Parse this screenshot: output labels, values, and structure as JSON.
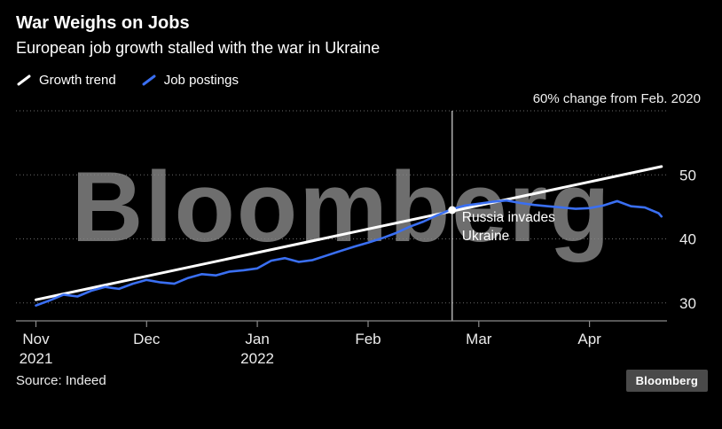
{
  "watermark": "Bloomberg",
  "footer": {
    "source": "Source: Indeed",
    "logo": "Bloomberg"
  },
  "chart_data": {
    "type": "line",
    "title": "War Weighs on Jobs",
    "subtitle": "European job growth stalled with the war in Ukraine",
    "ylabel": "60% change from Feb. 2020",
    "x_unit": "months since Nov 1, 2021",
    "xlim": [
      -0.18,
      5.7
    ],
    "ylim": [
      27.2,
      60
    ],
    "yticks": [
      30,
      40,
      50
    ],
    "ytop": 60,
    "grid": "dotted horizontal gridlines",
    "legend_position": "top-left",
    "background": "#000000",
    "xticks": [
      {
        "x": 0,
        "label": "Nov",
        "year": "2021"
      },
      {
        "x": 1,
        "label": "Dec"
      },
      {
        "x": 2,
        "label": "Jan",
        "year": "2022"
      },
      {
        "x": 3,
        "label": "Feb"
      },
      {
        "x": 4,
        "label": "Mar"
      },
      {
        "x": 5,
        "label": "Apr"
      }
    ],
    "event": {
      "x": 3.76,
      "y": 44.5,
      "label": "Russia invades Ukraine",
      "label_lines": [
        "Russia invades",
        "Ukraine"
      ]
    },
    "series": [
      {
        "name": "Growth trend",
        "color": "#ffffff",
        "width": 3,
        "x": [
          0,
          5.65
        ],
        "y": [
          30.5,
          51.3
        ]
      },
      {
        "name": "Job postings",
        "color": "#3a6ff2",
        "width": 2.6,
        "x": [
          0,
          0.125,
          0.25,
          0.375,
          0.5,
          0.625,
          0.75,
          0.875,
          1,
          1.125,
          1.25,
          1.375,
          1.5,
          1.625,
          1.75,
          1.875,
          2,
          2.125,
          2.25,
          2.375,
          2.5,
          2.625,
          2.75,
          2.875,
          3,
          3.125,
          3.25,
          3.375,
          3.5,
          3.625,
          3.75,
          3.875,
          4,
          4.125,
          4.25,
          4.375,
          4.5,
          4.625,
          4.75,
          4.875,
          5,
          5.125,
          5.25,
          5.375,
          5.5,
          5.625,
          5.65
        ],
        "y": [
          29.6,
          30.4,
          31.3,
          31.0,
          31.9,
          32.5,
          32.2,
          33.0,
          33.6,
          33.2,
          33.0,
          33.9,
          34.5,
          34.3,
          34.9,
          35.1,
          35.4,
          36.6,
          37.0,
          36.4,
          36.7,
          37.4,
          38.1,
          38.8,
          39.4,
          40.1,
          40.9,
          41.9,
          42.7,
          43.7,
          44.6,
          45.2,
          45.5,
          45.8,
          46.0,
          45.6,
          45.3,
          45.1,
          44.9,
          44.7,
          44.8,
          45.2,
          45.9,
          45.1,
          44.9,
          44.0,
          43.5
        ]
      }
    ]
  }
}
